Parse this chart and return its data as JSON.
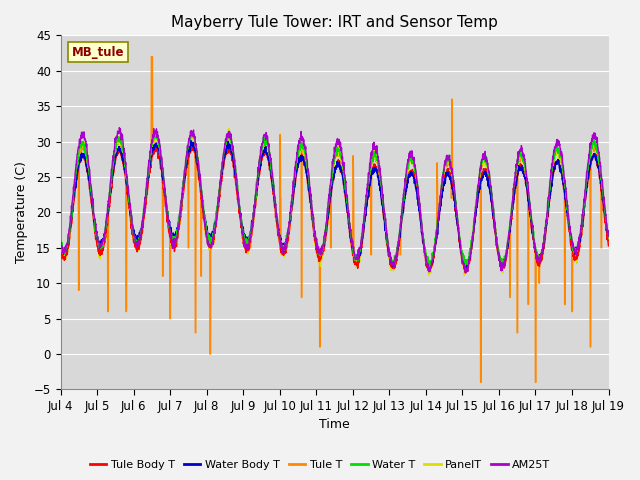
{
  "title": "Mayberry Tule Tower: IRT and Sensor Temp",
  "xlabel": "Time",
  "ylabel": "Temperature (C)",
  "ylim": [
    -5,
    45
  ],
  "yticks": [
    -5,
    0,
    5,
    10,
    15,
    20,
    25,
    30,
    35,
    40,
    45
  ],
  "xtick_labels": [
    "Jul 4",
    "Jul 5",
    "Jul 6",
    "Jul 7",
    "Jul 8",
    "Jul 9",
    "Jul 10",
    "Jul 11",
    "Jul 12",
    "Jul 13",
    "Jul 14",
    "Jul 15",
    "Jul 16",
    "Jul 17",
    "Jul 18",
    "Jul 19"
  ],
  "n_days": 15,
  "points_per_day": 144,
  "colors": {
    "Tule Body T": "#ff0000",
    "Water Body T": "#0000cc",
    "Tule T": "#ff8800",
    "Water T": "#00dd00",
    "PanelT": "#dddd00",
    "AM25T": "#aa00cc"
  },
  "legend_label": "MB_tule",
  "bg_color": "#d8d8d8",
  "grid_color": "#ffffff",
  "fig_bg": "#f2f2f2",
  "title_fontsize": 11,
  "label_fontsize": 9,
  "tick_fontsize": 8.5
}
